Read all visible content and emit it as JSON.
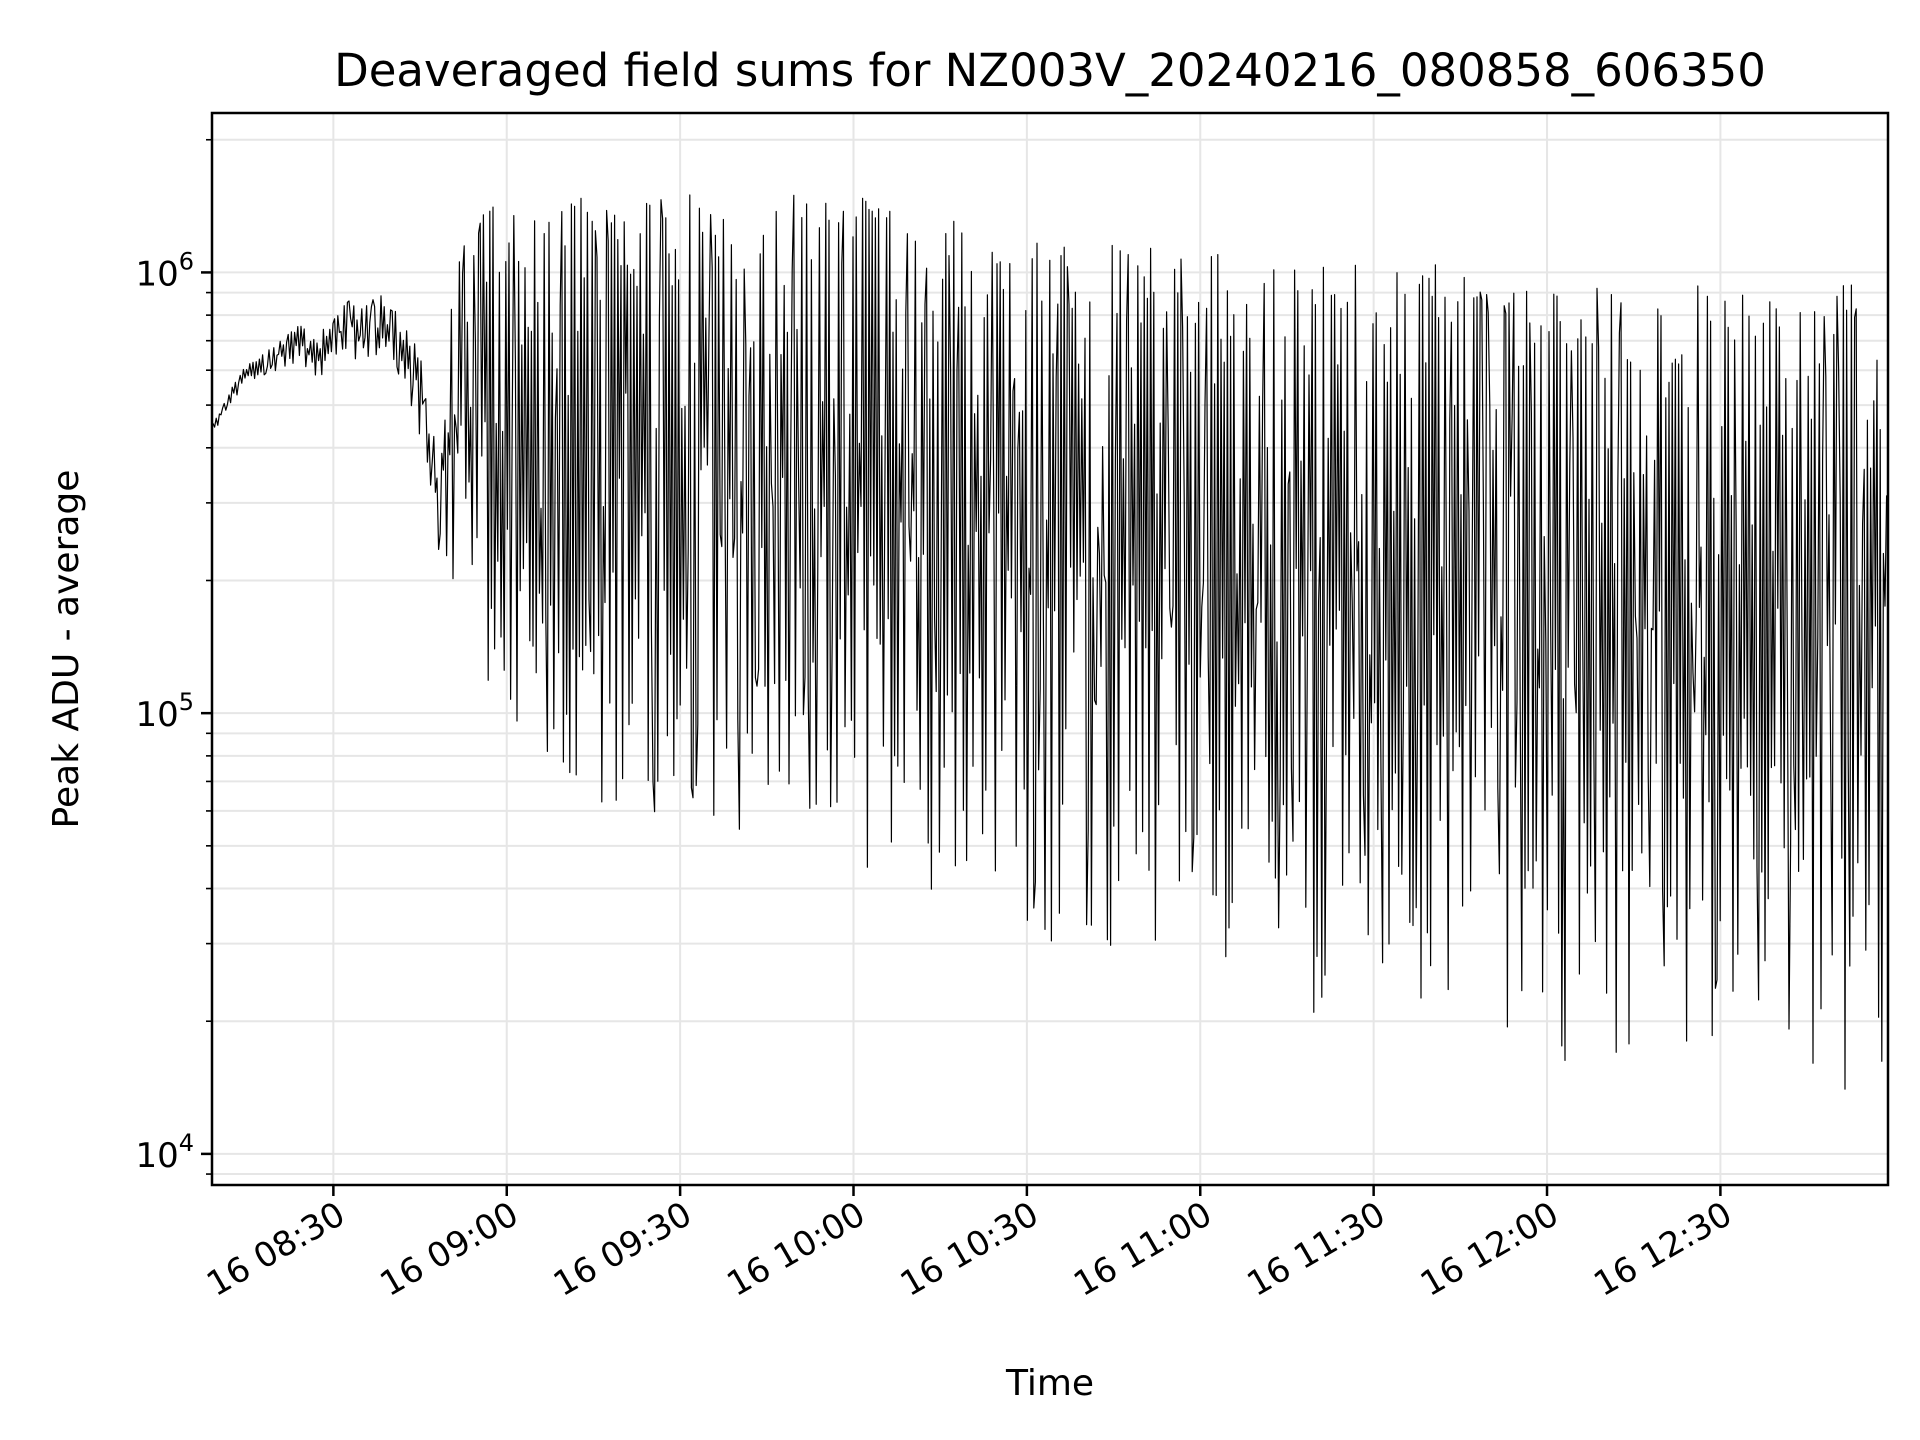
{
  "chart_data": {
    "type": "line",
    "title": "Deaveraged field sums for NZ003V_20240216_080858_606350",
    "xlabel": "Time",
    "ylabel": "Peak ADU - average",
    "y_scale": "log",
    "grid": true,
    "xlim": [
      "2024-02-16 08:09",
      "2024-02-16 12:59"
    ],
    "ylim": [
      8500,
      2300000
    ],
    "x_ticks": [
      {
        "t": "2024-02-16 08:30",
        "label": "16 08:30"
      },
      {
        "t": "2024-02-16 09:00",
        "label": "16 09:00"
      },
      {
        "t": "2024-02-16 09:30",
        "label": "16 09:30"
      },
      {
        "t": "2024-02-16 10:00",
        "label": "16 10:00"
      },
      {
        "t": "2024-02-16 10:30",
        "label": "16 10:30"
      },
      {
        "t": "2024-02-16 11:00",
        "label": "16 11:00"
      },
      {
        "t": "2024-02-16 11:30",
        "label": "16 11:30"
      },
      {
        "t": "2024-02-16 12:00",
        "label": "16 12:00"
      },
      {
        "t": "2024-02-16 12:30",
        "label": "16 12:30"
      }
    ],
    "y_ticks": [
      {
        "value": 10000,
        "base": "10",
        "exp": "4"
      },
      {
        "value": 100000,
        "base": "10",
        "exp": "5"
      },
      {
        "value": 1000000,
        "base": "10",
        "exp": "6"
      }
    ],
    "series": [
      {
        "color": "#000000",
        "x": [
          "2024-02-16 08:09",
          "2024-02-16 08:12",
          "2024-02-16 08:15",
          "2024-02-16 08:18",
          "2024-02-16 08:21",
          "2024-02-16 08:24",
          "2024-02-16 08:27",
          "2024-02-16 08:30",
          "2024-02-16 08:33",
          "2024-02-16 08:36",
          "2024-02-16 08:39",
          "2024-02-16 08:42",
          "2024-02-16 08:45",
          "2024-02-16 08:48",
          "2024-02-16 08:51",
          "2024-02-16 08:54",
          "2024-02-16 08:57",
          "2024-02-16 09:00",
          "2024-02-16 09:03",
          "2024-02-16 09:06",
          "2024-02-16 09:09",
          "2024-02-16 09:12",
          "2024-02-16 09:15",
          "2024-02-16 09:18",
          "2024-02-16 09:21",
          "2024-02-16 09:24",
          "2024-02-16 09:27",
          "2024-02-16 09:30",
          "2024-02-16 09:33",
          "2024-02-16 09:36",
          "2024-02-16 09:39",
          "2024-02-16 09:42",
          "2024-02-16 09:45",
          "2024-02-16 09:48",
          "2024-02-16 09:51",
          "2024-02-16 09:54",
          "2024-02-16 09:57",
          "2024-02-16 10:00",
          "2024-02-16 10:03",
          "2024-02-16 10:06",
          "2024-02-16 10:09",
          "2024-02-16 10:12",
          "2024-02-16 10:15",
          "2024-02-16 10:18",
          "2024-02-16 10:21",
          "2024-02-16 10:24",
          "2024-02-16 10:27",
          "2024-02-16 10:30",
          "2024-02-16 10:33",
          "2024-02-16 10:36",
          "2024-02-16 10:39",
          "2024-02-16 10:42",
          "2024-02-16 10:45",
          "2024-02-16 10:48",
          "2024-02-16 10:51",
          "2024-02-16 10:54",
          "2024-02-16 10:57",
          "2024-02-16 11:00",
          "2024-02-16 11:03",
          "2024-02-16 11:06",
          "2024-02-16 11:09",
          "2024-02-16 11:12",
          "2024-02-16 11:15",
          "2024-02-16 11:18",
          "2024-02-16 11:21",
          "2024-02-16 11:24",
          "2024-02-16 11:27",
          "2024-02-16 11:30",
          "2024-02-16 11:33",
          "2024-02-16 11:36",
          "2024-02-16 11:39",
          "2024-02-16 11:42",
          "2024-02-16 11:45",
          "2024-02-16 11:48",
          "2024-02-16 11:51",
          "2024-02-16 11:54",
          "2024-02-16 11:57",
          "2024-02-16 12:00",
          "2024-02-16 12:03",
          "2024-02-16 12:06",
          "2024-02-16 12:09",
          "2024-02-16 12:12",
          "2024-02-16 12:15",
          "2024-02-16 12:18",
          "2024-02-16 12:21",
          "2024-02-16 12:24",
          "2024-02-16 12:27",
          "2024-02-16 12:30",
          "2024-02-16 12:33",
          "2024-02-16 12:36",
          "2024-02-16 12:39",
          "2024-02-16 12:42",
          "2024-02-16 12:45",
          "2024-02-16 12:48",
          "2024-02-16 12:51",
          "2024-02-16 12:54",
          "2024-02-16 12:57"
        ],
        "high": [
          450000,
          540000,
          620000,
          660000,
          700000,
          760000,
          720000,
          800000,
          870000,
          840000,
          940000,
          780000,
          650000,
          400000,
          1000000,
          1300000,
          1400000,
          1500000,
          1400000,
          1350000,
          1450000,
          1500000,
          1500000,
          1400000,
          1300000,
          1450000,
          1500000,
          1500000,
          1600000,
          1450000,
          1300000,
          1300000,
          1200000,
          1550000,
          1500000,
          1450000,
          1500000,
          1500000,
          1450000,
          1400000,
          1350000,
          1300000,
          1350000,
          1300000,
          1250000,
          1300000,
          1250000,
          1200000,
          1150000,
          1150000,
          1100000,
          1200000,
          1150000,
          1100000,
          1150000,
          1100000,
          1100000,
          1050000,
          1150000,
          1100000,
          1050000,
          1050000,
          1000000,
          1050000,
          1050000,
          1000000,
          1050000,
          1000000,
          1000000,
          1050000,
          1000000,
          1100000,
          1050000,
          1000000,
          950000,
          900000,
          950000,
          1000000,
          950000,
          900000,
          950000,
          900000,
          850000,
          850000,
          900000,
          1000000,
          950000,
          950000,
          900000,
          900000,
          850000,
          900000,
          900000,
          950000,
          950000,
          950000,
          1000000
        ],
        "low": [
          420000,
          500000,
          560000,
          580000,
          600000,
          630000,
          560000,
          620000,
          650000,
          600000,
          640000,
          560000,
          420000,
          230000,
          190000,
          150000,
          100000,
          80000,
          70000,
          60000,
          62000,
          70000,
          58000,
          55000,
          50000,
          48000,
          52000,
          60000,
          58000,
          55000,
          45000,
          48000,
          50000,
          52000,
          50000,
          48000,
          47000,
          45000,
          43000,
          42000,
          40000,
          38000,
          38000,
          37000,
          35000,
          33000,
          32000,
          31000,
          30000,
          30000,
          30000,
          29000,
          28000,
          27000,
          28000,
          28000,
          27000,
          27000,
          26000,
          25000,
          24000,
          22000,
          21000,
          20000,
          20000,
          19000,
          19000,
          18000,
          19000,
          19000,
          18000,
          18000,
          18000,
          17000,
          17000,
          17000,
          16000,
          16000,
          16000,
          16000,
          17000,
          16000,
          16000,
          16000,
          15000,
          15000,
          17000,
          17000,
          16000,
          16000,
          16000,
          15000,
          15000,
          14000,
          14000,
          14000,
          14000
        ]
      }
    ]
  }
}
